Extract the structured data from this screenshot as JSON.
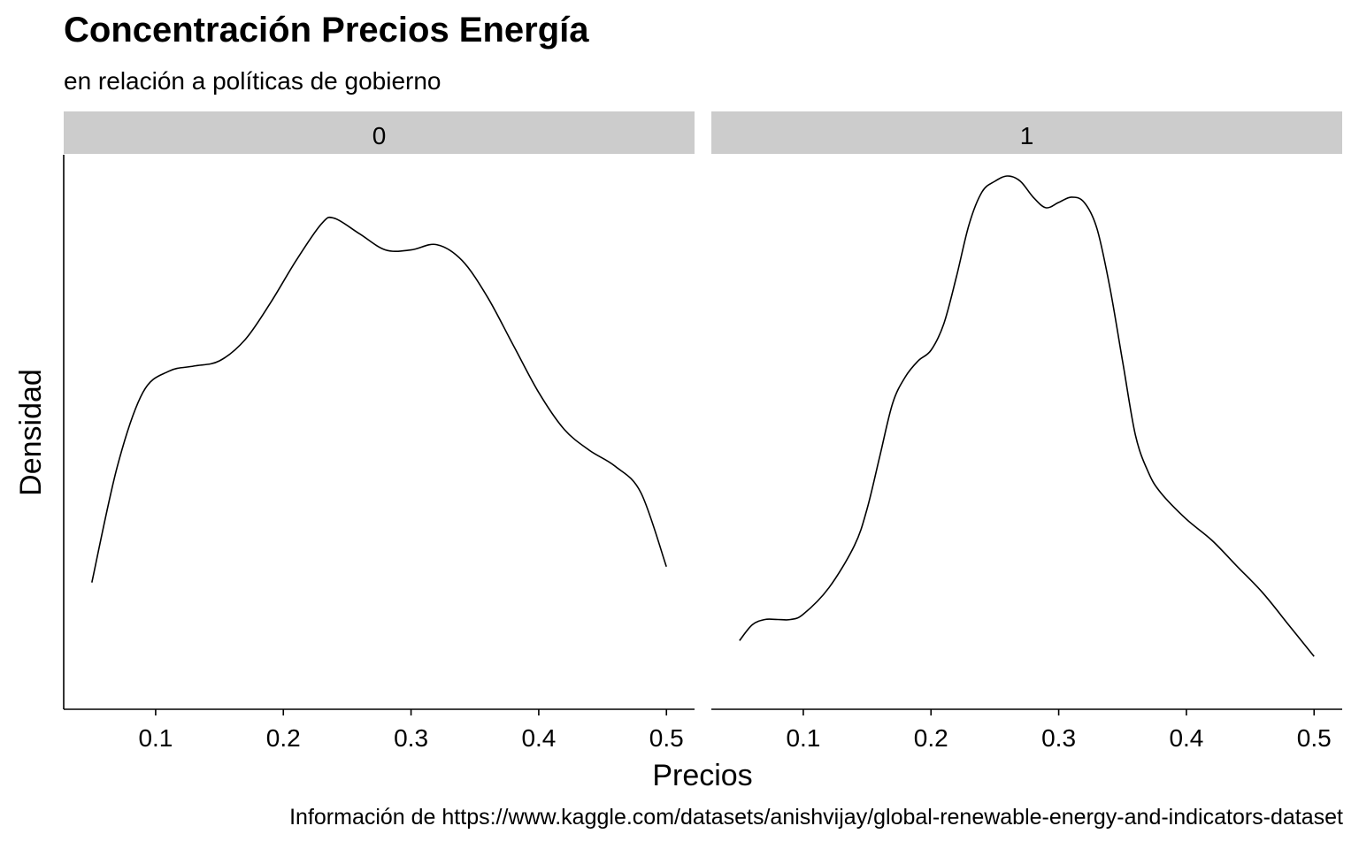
{
  "chart_data": {
    "type": "line",
    "title": "Concentración Precios Energía",
    "subtitle": "en relación a políticas de gobierno",
    "caption": "Información de https://www.kaggle.com/datasets/anishvijay/global-renewable-energy-and-indicators-dataset",
    "xlabel": "Precios",
    "ylabel": "Densidad",
    "xlim": [
      0.028,
      0.522
    ],
    "xticks": [
      "0.1",
      "0.2",
      "0.3",
      "0.4",
      "0.5"
    ],
    "xtick_values": [
      0.1,
      0.2,
      0.3,
      0.4,
      0.5
    ],
    "y_axis_ticks": "none",
    "grid": false,
    "facets": [
      {
        "label": "0",
        "x": [
          0.05,
          0.07,
          0.09,
          0.11,
          0.13,
          0.15,
          0.17,
          0.19,
          0.21,
          0.23,
          0.24,
          0.26,
          0.28,
          0.3,
          0.32,
          0.34,
          0.36,
          0.38,
          0.4,
          0.42,
          0.44,
          0.46,
          0.48,
          0.5
        ],
        "y": [
          0.24,
          0.46,
          0.6,
          0.64,
          0.65,
          0.66,
          0.7,
          0.77,
          0.85,
          0.92,
          0.93,
          0.9,
          0.87,
          0.87,
          0.88,
          0.85,
          0.78,
          0.69,
          0.6,
          0.53,
          0.49,
          0.46,
          0.41,
          0.27
        ]
      },
      {
        "label": "1",
        "x": [
          0.05,
          0.06,
          0.07,
          0.08,
          0.09,
          0.1,
          0.12,
          0.14,
          0.15,
          0.16,
          0.17,
          0.18,
          0.19,
          0.2,
          0.21,
          0.22,
          0.23,
          0.24,
          0.25,
          0.26,
          0.27,
          0.28,
          0.29,
          0.3,
          0.31,
          0.32,
          0.33,
          0.34,
          0.35,
          0.36,
          0.37,
          0.38,
          0.4,
          0.42,
          0.44,
          0.46,
          0.48,
          0.5
        ],
        "y": [
          0.13,
          0.16,
          0.17,
          0.17,
          0.17,
          0.18,
          0.23,
          0.31,
          0.38,
          0.48,
          0.58,
          0.63,
          0.66,
          0.68,
          0.73,
          0.82,
          0.92,
          0.98,
          1.0,
          1.01,
          1.0,
          0.97,
          0.95,
          0.96,
          0.97,
          0.96,
          0.91,
          0.8,
          0.66,
          0.52,
          0.45,
          0.41,
          0.36,
          0.32,
          0.27,
          0.22,
          0.16,
          0.1
        ]
      }
    ]
  }
}
